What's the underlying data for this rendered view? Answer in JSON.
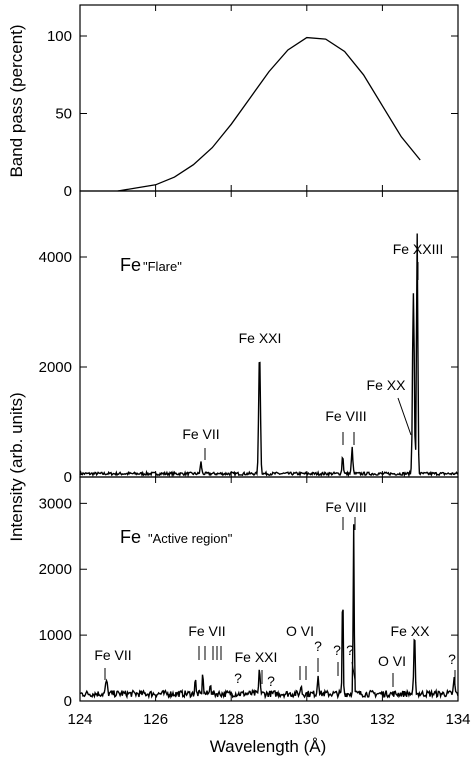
{
  "chart_data": [
    {
      "type": "line",
      "title": "",
      "xlabel": "",
      "ylabel": "Band pass (percent)",
      "xlim": [
        124,
        134
      ],
      "ylim": [
        0,
        120
      ],
      "yticks": [
        0,
        50,
        100
      ],
      "x": [
        125.0,
        125.5,
        126.0,
        126.5,
        127.0,
        127.5,
        128.0,
        128.5,
        129.0,
        129.5,
        130.0,
        130.5,
        131.0,
        131.5,
        132.0,
        132.5,
        133.0
      ],
      "series": [
        {
          "values": [
            0,
            2,
            4,
            9,
            17,
            28,
            43,
            60,
            77,
            91,
            99,
            98,
            90,
            75,
            55,
            35,
            20
          ]
        }
      ]
    },
    {
      "type": "line",
      "title": "",
      "label": "Fe",
      "label_sub": "\"Flare\"",
      "xlim": [
        124,
        134
      ],
      "ylim": [
        0,
        5200
      ],
      "yticks": [
        0,
        2000,
        4000
      ],
      "baseline": 60,
      "peaks": [
        {
          "x": 127.2,
          "y": 210,
          "w": 0.04
        },
        {
          "x": 128.75,
          "y": 2250,
          "w": 0.05
        },
        {
          "x": 130.95,
          "y": 330,
          "w": 0.04
        },
        {
          "x": 131.2,
          "y": 470,
          "w": 0.04
        },
        {
          "x": 132.82,
          "y": 3300,
          "w": 0.05
        },
        {
          "x": 132.92,
          "y": 4350,
          "w": 0.04
        }
      ],
      "annotations": [
        {
          "text": "Fe VII",
          "x": 127.2
        },
        {
          "text": "Fe XXI",
          "x": 128.75
        },
        {
          "text": "Fe VIII",
          "x": 131.05
        },
        {
          "text": "Fe XX",
          "x": 132.82
        },
        {
          "text": "Fe XXIII",
          "x": 132.92
        }
      ]
    },
    {
      "type": "line",
      "title": "",
      "label": "Fe",
      "label_sub": "\"Active region\"",
      "xlim": [
        124,
        134
      ],
      "ylim": [
        0,
        3400
      ],
      "yticks": [
        0,
        1000,
        2000,
        3000
      ],
      "baseline": 110,
      "peaks": [
        {
          "x": 124.7,
          "y": 200,
          "w": 0.05
        },
        {
          "x": 127.05,
          "y": 240,
          "w": 0.03
        },
        {
          "x": 127.25,
          "y": 330,
          "w": 0.03
        },
        {
          "x": 127.45,
          "y": 200,
          "w": 0.03
        },
        {
          "x": 128.75,
          "y": 380,
          "w": 0.04
        },
        {
          "x": 129.85,
          "y": 150,
          "w": 0.03
        },
        {
          "x": 130.3,
          "y": 300,
          "w": 0.04
        },
        {
          "x": 130.95,
          "y": 1650,
          "w": 0.03
        },
        {
          "x": 131.24,
          "y": 2620,
          "w": 0.03
        },
        {
          "x": 132.85,
          "y": 900,
          "w": 0.04
        },
        {
          "x": 133.9,
          "y": 230,
          "w": 0.04
        }
      ],
      "annotations": [
        {
          "text": "Fe VII",
          "x": 124.7
        },
        {
          "text": "Fe VII",
          "x": 127.25
        },
        {
          "text": "Fe XXI",
          "x": 128.75
        },
        {
          "text": "O VI",
          "x": 129.9
        },
        {
          "text": "Fe VIII",
          "x": 131.1
        },
        {
          "text": "O VI",
          "x": 132.3
        },
        {
          "text": "Fe XX",
          "x": 132.85
        },
        {
          "text": "?",
          "x": 128.1
        },
        {
          "text": "?",
          "x": 129.0
        },
        {
          "text": "?",
          "x": 130.3
        },
        {
          "text": "?",
          "x": 130.85
        },
        {
          "text": "?",
          "x": 131.05
        },
        {
          "text": "?",
          "x": 133.85
        }
      ]
    }
  ],
  "shared": {
    "xlabel": "Wavelength (Å)",
    "ylabel": "Intensity (arb. units)",
    "xticks": [
      124,
      126,
      128,
      130,
      132,
      134
    ]
  }
}
